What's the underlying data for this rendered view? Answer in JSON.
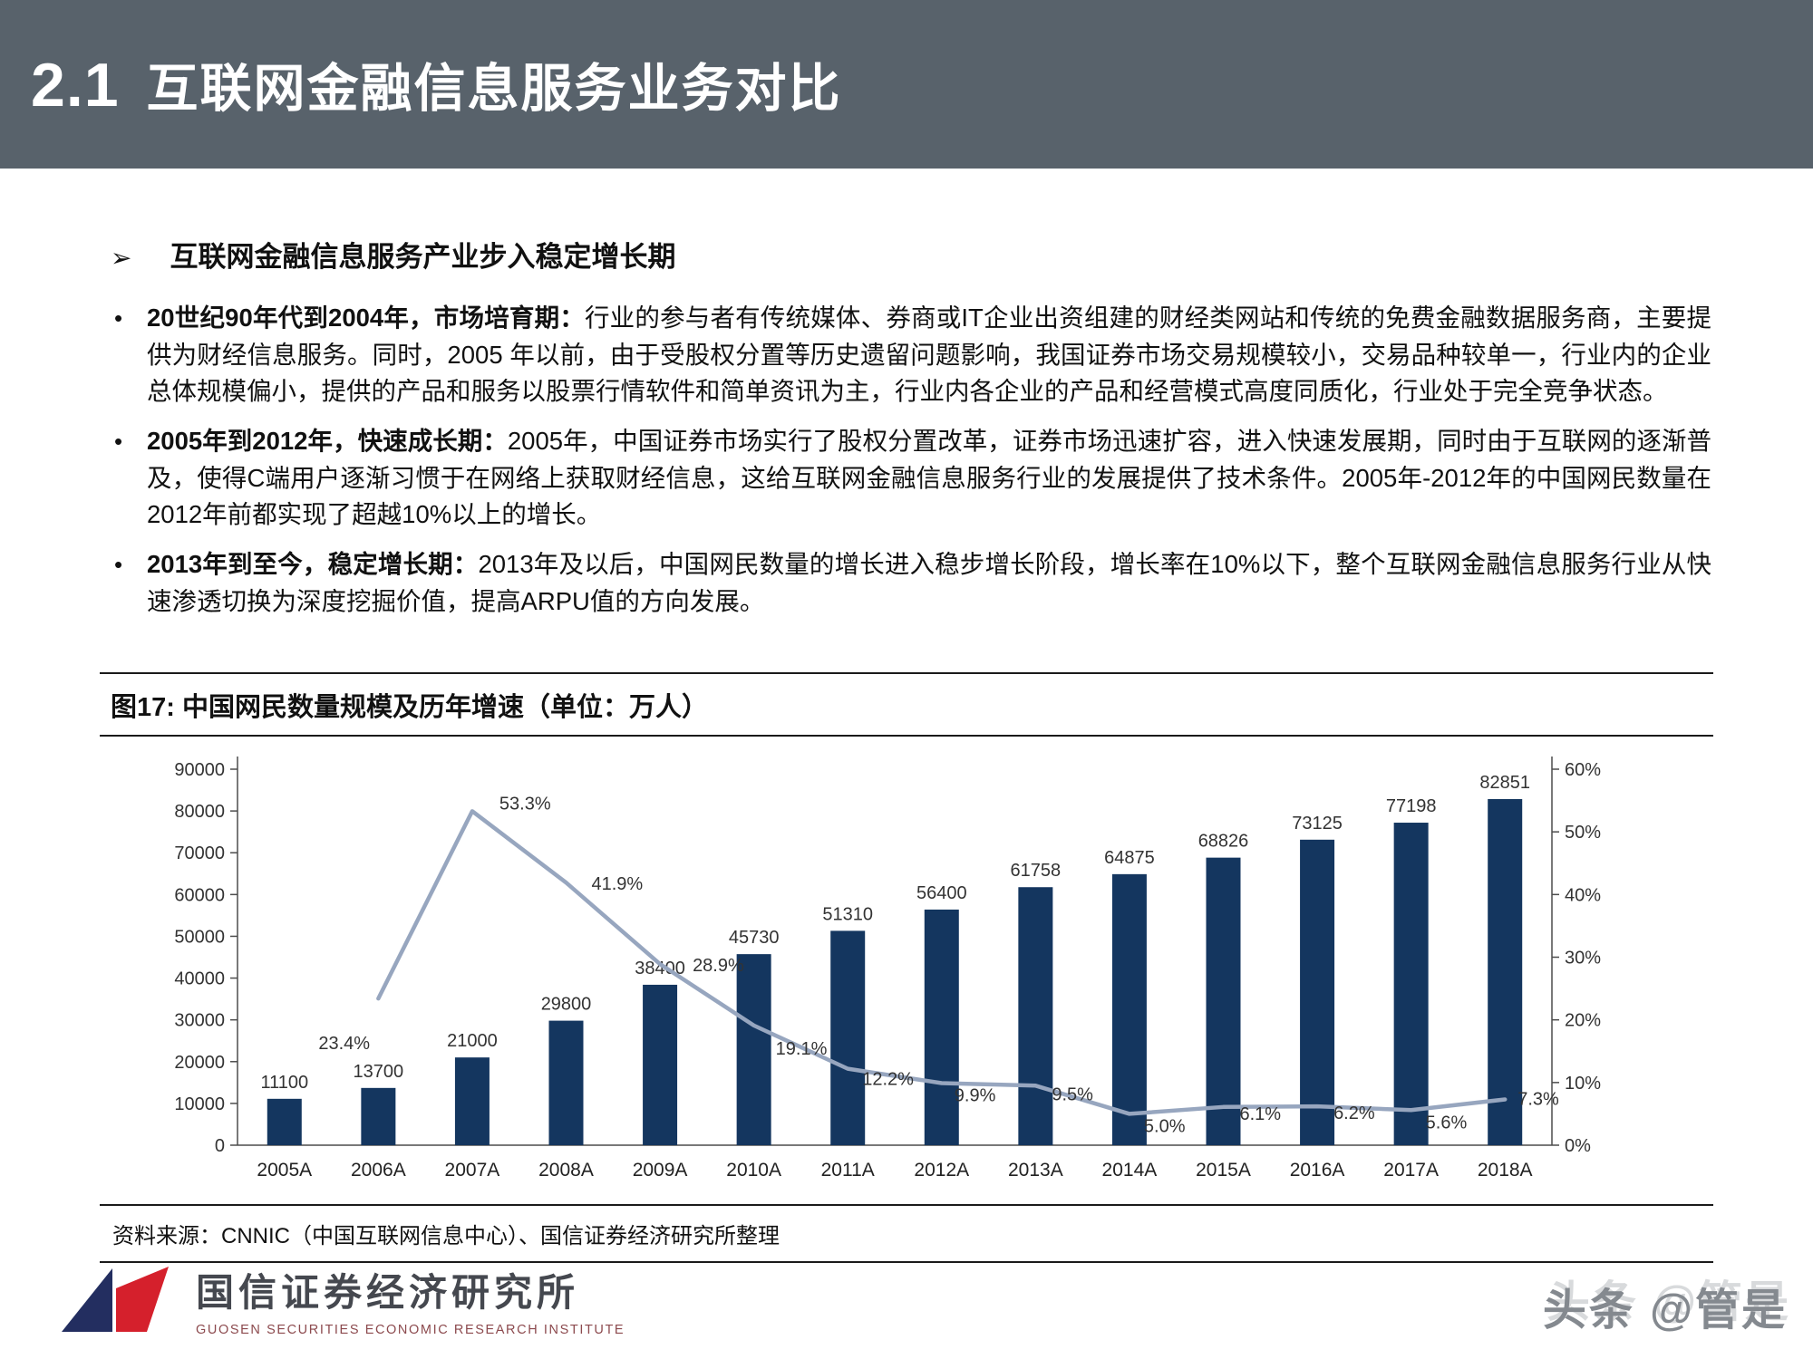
{
  "header": {
    "section_number": "2.1",
    "title": "互联网金融信息服务业务对比"
  },
  "content": {
    "marker_icon": "➢",
    "heading": "互联网金融信息服务产业步入稳定增长期",
    "bullets": [
      {
        "lead": "20世纪90年代到2004年，市场培育期：",
        "text": "行业的参与者有传统媒体、券商或IT企业出资组建的财经类网站和传统的免费金融数据服务商，主要提供为财经信息服务。同时，2005 年以前，由于受股权分置等历史遗留问题影响，我国证券市场交易规模较小，交易品种较单一，行业内的企业总体规模偏小，提供的产品和服务以股票行情软件和简单资讯为主，行业内各企业的产品和经营模式高度同质化，行业处于完全竞争状态。"
      },
      {
        "lead": "2005年到2012年，快速成长期：",
        "text": "2005年，中国证券市场实行了股权分置改革，证券市场迅速扩容，进入快速发展期，同时由于互联网的逐渐普及，使得C端用户逐渐习惯于在网络上获取财经信息，这给互联网金融信息服务行业的发展提供了技术条件。2005年-2012年的中国网民数量在2012年前都实现了超越10%以上的增长。"
      },
      {
        "lead": "2013年到至今，稳定增长期：",
        "text": "2013年及以后，中国网民数量的增长进入稳步增长阶段，增长率在10%以下，整个互联网金融信息服务行业从快速渗透切换为深度挖掘价值，提高ARPU值的方向发展。"
      }
    ]
  },
  "figure": {
    "title": "图17:  中国网民数量规模及历年增速（单位：万人）",
    "source": "资料来源：CNNIC（中国互联网信息中心）、国信证券经济研究所整理"
  },
  "chart_data": {
    "type": "bar",
    "title": "中国网民数量规模及历年增速（单位：万人）",
    "categories": [
      "2005A",
      "2006A",
      "2007A",
      "2008A",
      "2009A",
      "2010A",
      "2011A",
      "2012A",
      "2013A",
      "2014A",
      "2015A",
      "2016A",
      "2017A",
      "2018A"
    ],
    "series": [
      {
        "name": "中国网民数量（万人）",
        "type": "bar",
        "axis": "left",
        "color": "#14365f",
        "values": [
          11100,
          13700,
          21000,
          29800,
          38400,
          45730,
          51310,
          56400,
          61758,
          64875,
          68826,
          73125,
          77198,
          82851
        ]
      },
      {
        "name": "历年增速",
        "type": "line",
        "axis": "right",
        "color": "#97a6bf",
        "values": [
          null,
          23.4,
          53.3,
          41.9,
          28.9,
          19.1,
          12.2,
          9.9,
          9.5,
          5.0,
          6.1,
          6.2,
          5.6,
          7.3
        ]
      }
    ],
    "left_axis": {
      "min": 0,
      "max": 90000,
      "step": 10000
    },
    "right_axis": {
      "min": 0,
      "max": 60,
      "step": 10,
      "suffix": "%"
    },
    "grid": false,
    "legend": "none"
  },
  "footer": {
    "logo_title": "国信证券经济研究所",
    "logo_subtitle": "GUOSEN SECURITIES ECONOMIC RESEARCH INSTITUTE",
    "watermark": "头条 @管是"
  },
  "colors": {
    "header_bg": "#58626b",
    "bar": "#14365f",
    "line": "#97a6bf",
    "logo_navy": "#232e60",
    "logo_red": "#d5202c"
  }
}
